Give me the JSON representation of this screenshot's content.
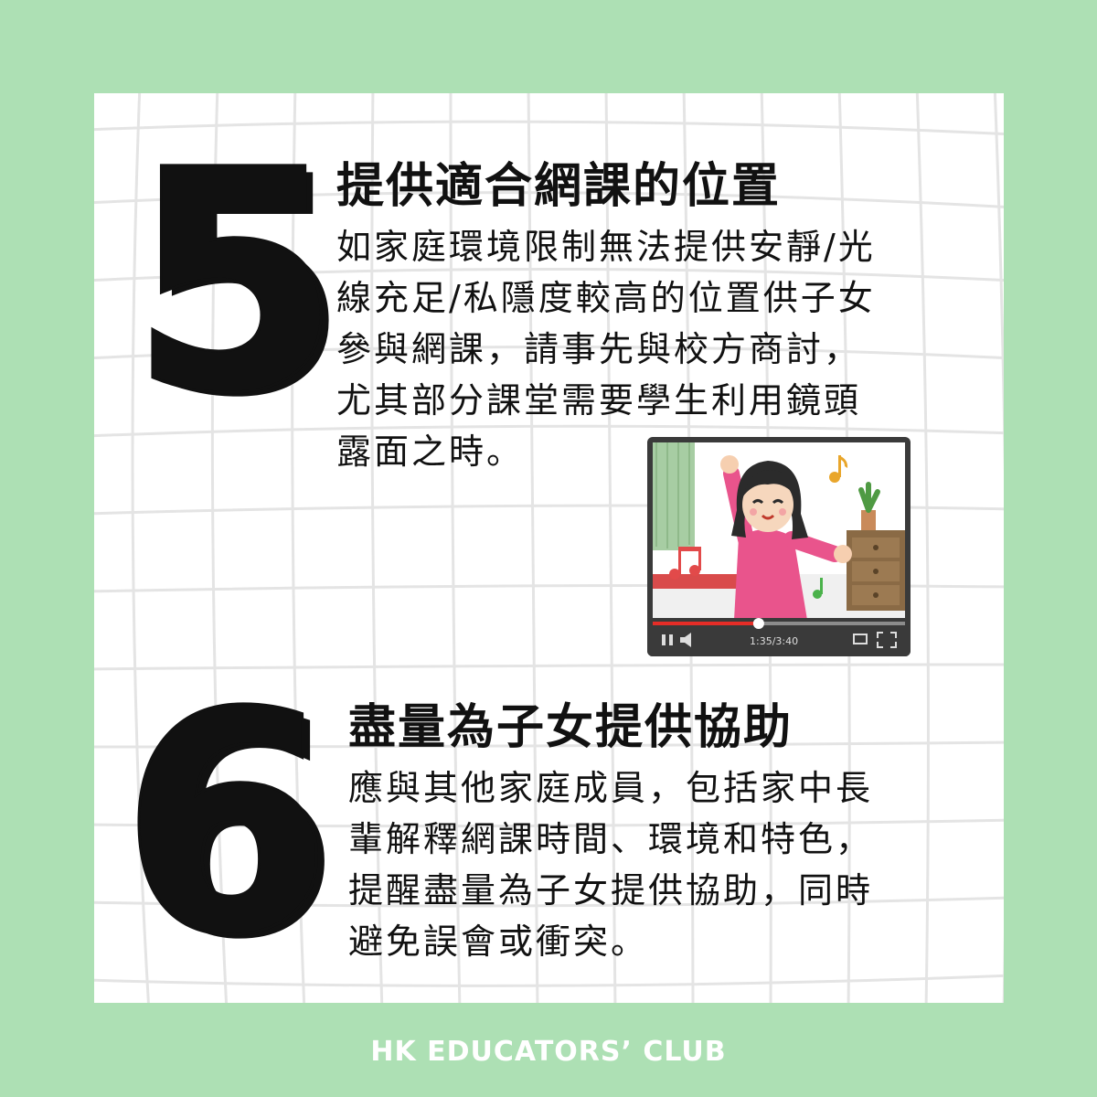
{
  "colors": {
    "background": "#ade0b4",
    "card": "#ffffff",
    "grid": "#e2e2e2",
    "ink": "#111111"
  },
  "section5": {
    "number": "5",
    "title": "提供適合網課的位置",
    "lines": [
      "如家庭環境限制無法提供安靜/光",
      "線充足/私隱度較高的位置供子女",
      "參與網課，請事先與校方商討，",
      "尤其部分課堂需要學生利用鏡頭",
      "露面之時。"
    ],
    "video": {
      "time": "1:35/3:40",
      "progress": 0.42
    }
  },
  "section6": {
    "number": "6",
    "title": "盡量為子女提供協助",
    "lines": [
      "應與其他家庭成員，包括家中長",
      "輩解釋網課時間、環境和特色，",
      "提醒盡量為子女提供協助，同時",
      "避免誤會或衝突。"
    ]
  },
  "footer": {
    "text": "HK EDUCATORS’ CLUB"
  },
  "icons": [
    "play-pause-icon",
    "volume-icon",
    "music-note-icon",
    "fullscreen-icon",
    "theater-mode-icon"
  ]
}
